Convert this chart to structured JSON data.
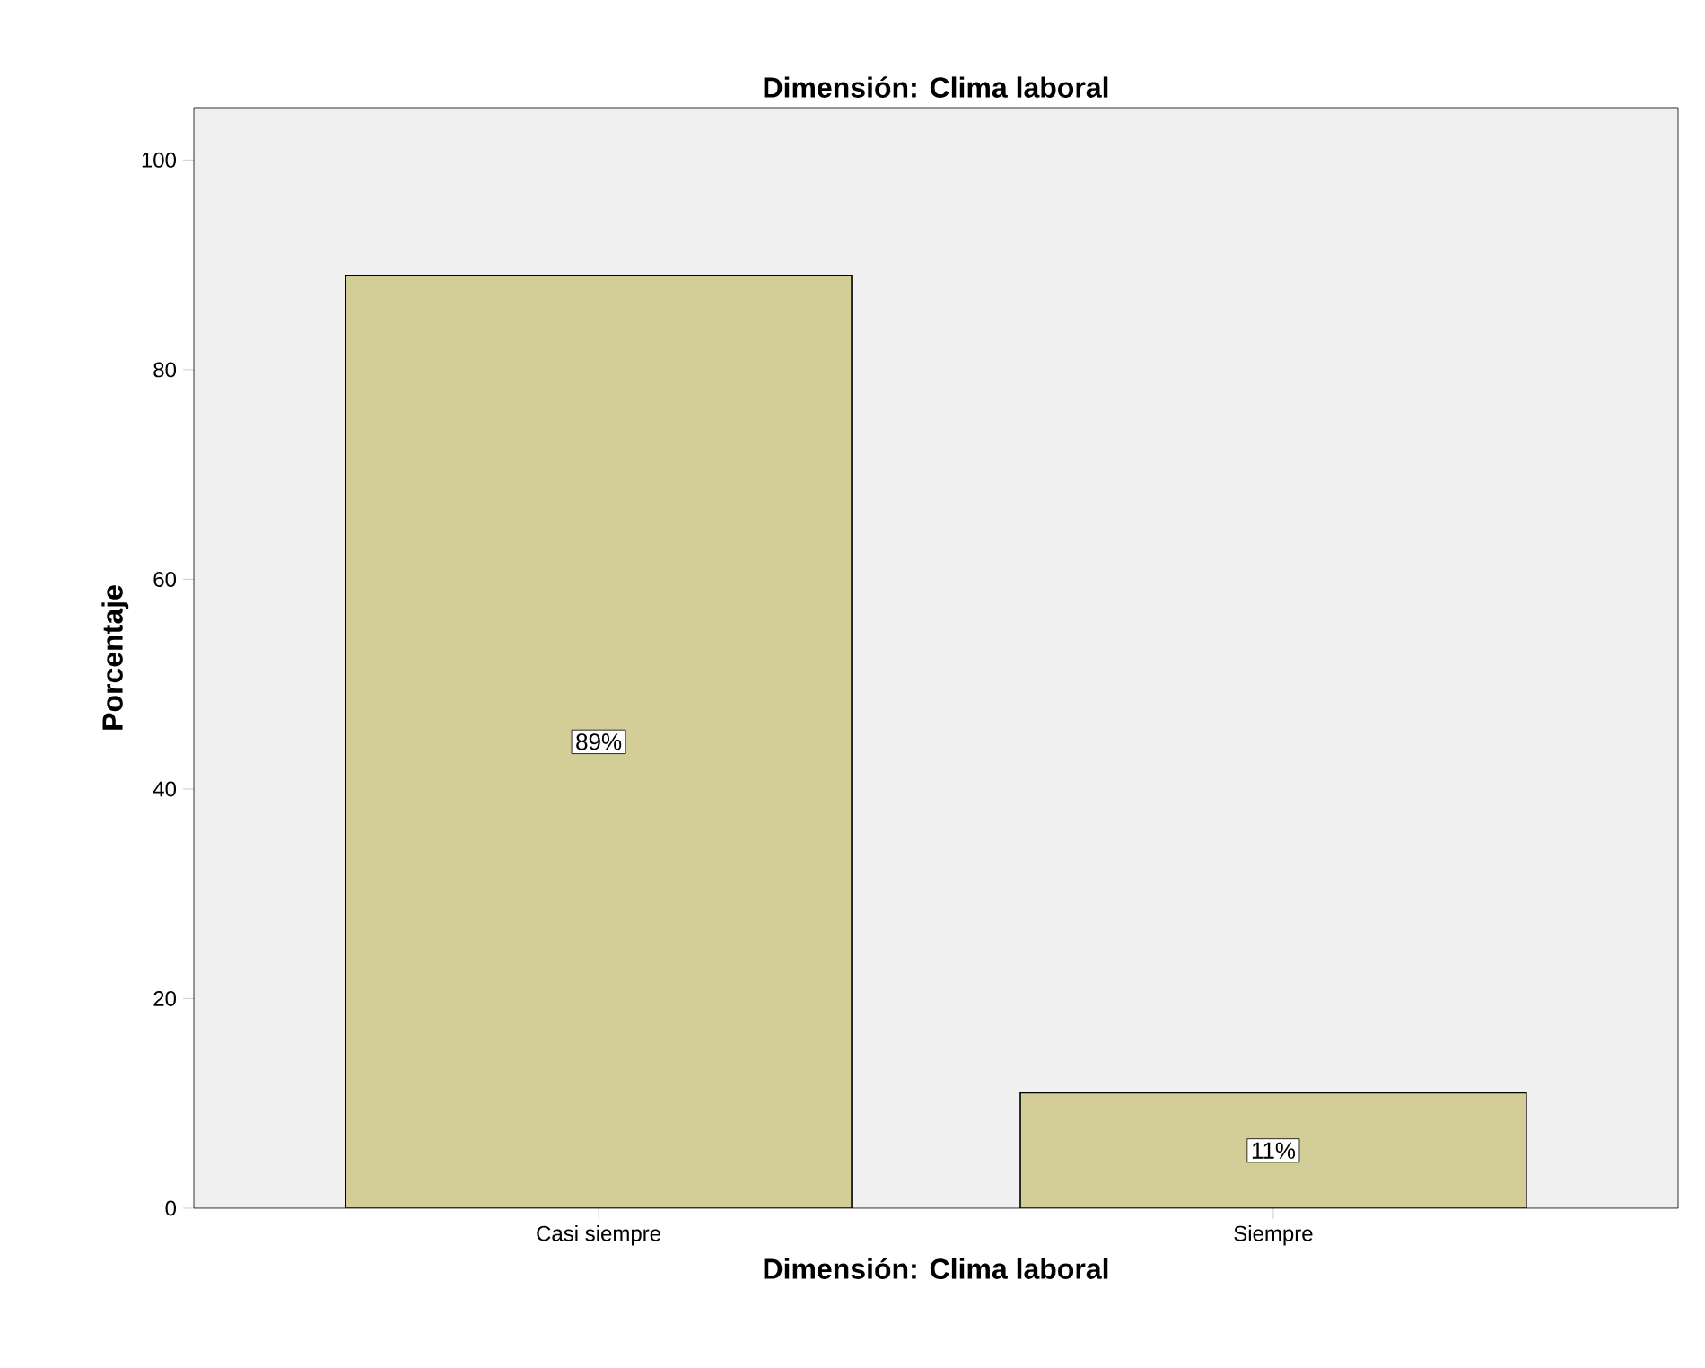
{
  "chart_data": {
    "type": "bar",
    "title": "Dimensión: Clima laboral",
    "xlabel": "Dimensión: Clima laboral",
    "ylabel": "Porcentaje",
    "categories": [
      "Casi siempre",
      "Siempre"
    ],
    "values": [
      89,
      11
    ],
    "value_labels": [
      "89%",
      "11%"
    ],
    "color": "#d3ce97",
    "ylim": [
      0,
      105
    ],
    "yticks": [
      0,
      20,
      40,
      60,
      80,
      100
    ],
    "grid": false
  }
}
